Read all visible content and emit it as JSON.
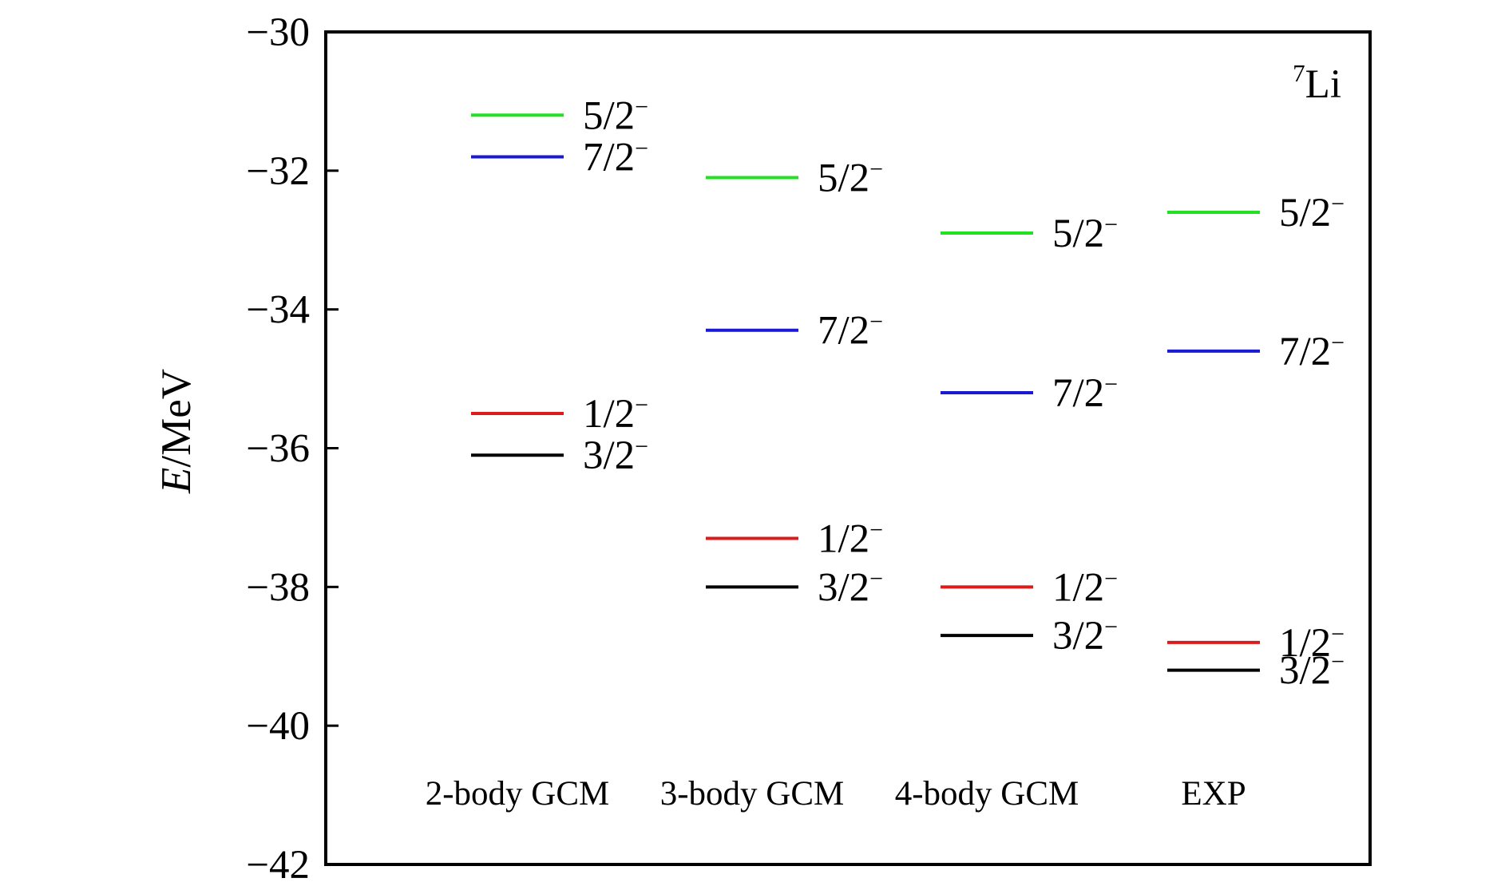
{
  "chart_data": {
    "type": "level-scheme",
    "title": "",
    "nucleus": {
      "mass_number": "7",
      "symbol": "Li"
    },
    "ylabel": {
      "italic": "E",
      "rest": "/MeV"
    },
    "ylim": [
      -42,
      -30
    ],
    "yticks": [
      -30,
      -32,
      -34,
      -36,
      -38,
      -40,
      -42
    ],
    "ytick_labels": [
      "−30",
      "−32",
      "−34",
      "−36",
      "−38",
      "−40",
      "−42"
    ],
    "grid": false,
    "colors": {
      "5/2-": "#22e022",
      "7/2-": "#1a1ad2",
      "1/2-": "#dd1b1b",
      "3/2-": "#000000"
    },
    "categories": [
      "2-body GCM",
      "3-body GCM",
      "4-body GCM",
      "EXP"
    ],
    "levels": [
      {
        "category": "2-body GCM",
        "states": [
          {
            "spin": "5/2",
            "parity": "−",
            "energy": -31.2,
            "color_key": "5/2-"
          },
          {
            "spin": "7/2",
            "parity": "−",
            "energy": -31.8,
            "color_key": "7/2-"
          },
          {
            "spin": "1/2",
            "parity": "−",
            "energy": -35.5,
            "color_key": "1/2-"
          },
          {
            "spin": "3/2",
            "parity": "−",
            "energy": -36.1,
            "color_key": "3/2-"
          }
        ]
      },
      {
        "category": "3-body GCM",
        "states": [
          {
            "spin": "5/2",
            "parity": "−",
            "energy": -32.1,
            "color_key": "5/2-"
          },
          {
            "spin": "7/2",
            "parity": "−",
            "energy": -34.3,
            "color_key": "7/2-"
          },
          {
            "spin": "1/2",
            "parity": "−",
            "energy": -37.3,
            "color_key": "1/2-"
          },
          {
            "spin": "3/2",
            "parity": "−",
            "energy": -38.0,
            "color_key": "3/2-"
          }
        ]
      },
      {
        "category": "4-body GCM",
        "states": [
          {
            "spin": "5/2",
            "parity": "−",
            "energy": -32.9,
            "color_key": "5/2-"
          },
          {
            "spin": "7/2",
            "parity": "−",
            "energy": -35.2,
            "color_key": "7/2-"
          },
          {
            "spin": "1/2",
            "parity": "−",
            "energy": -38.0,
            "color_key": "1/2-"
          },
          {
            "spin": "3/2",
            "parity": "−",
            "energy": -38.7,
            "color_key": "3/2-"
          }
        ]
      },
      {
        "category": "EXP",
        "states": [
          {
            "spin": "5/2",
            "parity": "−",
            "energy": -32.6,
            "color_key": "5/2-"
          },
          {
            "spin": "7/2",
            "parity": "−",
            "energy": -34.6,
            "color_key": "7/2-"
          },
          {
            "spin": "1/2",
            "parity": "−",
            "energy": -38.8,
            "color_key": "1/2-"
          },
          {
            "spin": "3/2",
            "parity": "−",
            "energy": -39.2,
            "color_key": "3/2-"
          }
        ]
      }
    ]
  }
}
